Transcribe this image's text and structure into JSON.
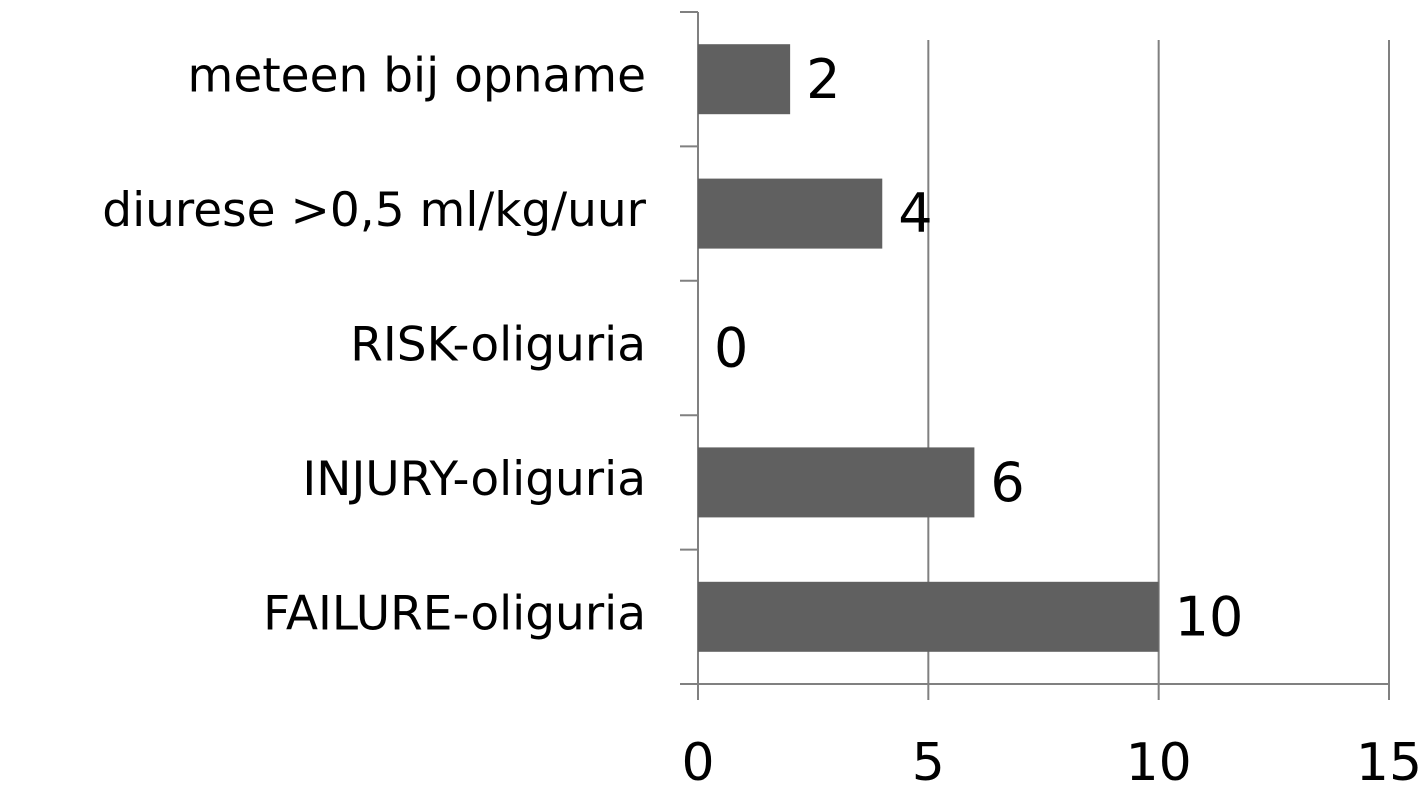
{
  "chart_data": {
    "type": "bar",
    "orientation": "horizontal",
    "categories": [
      "meteen bij opname",
      "diurese >0,5 ml/kg/uur",
      "RISK-oliguria",
      "INJURY-oliguria",
      "FAILURE-oliguria"
    ],
    "values": [
      2,
      4,
      0,
      6,
      10
    ],
    "color": "#606060",
    "xlim": [
      0,
      15
    ],
    "xticks": [
      0,
      5,
      10,
      15
    ],
    "grid": true
  }
}
